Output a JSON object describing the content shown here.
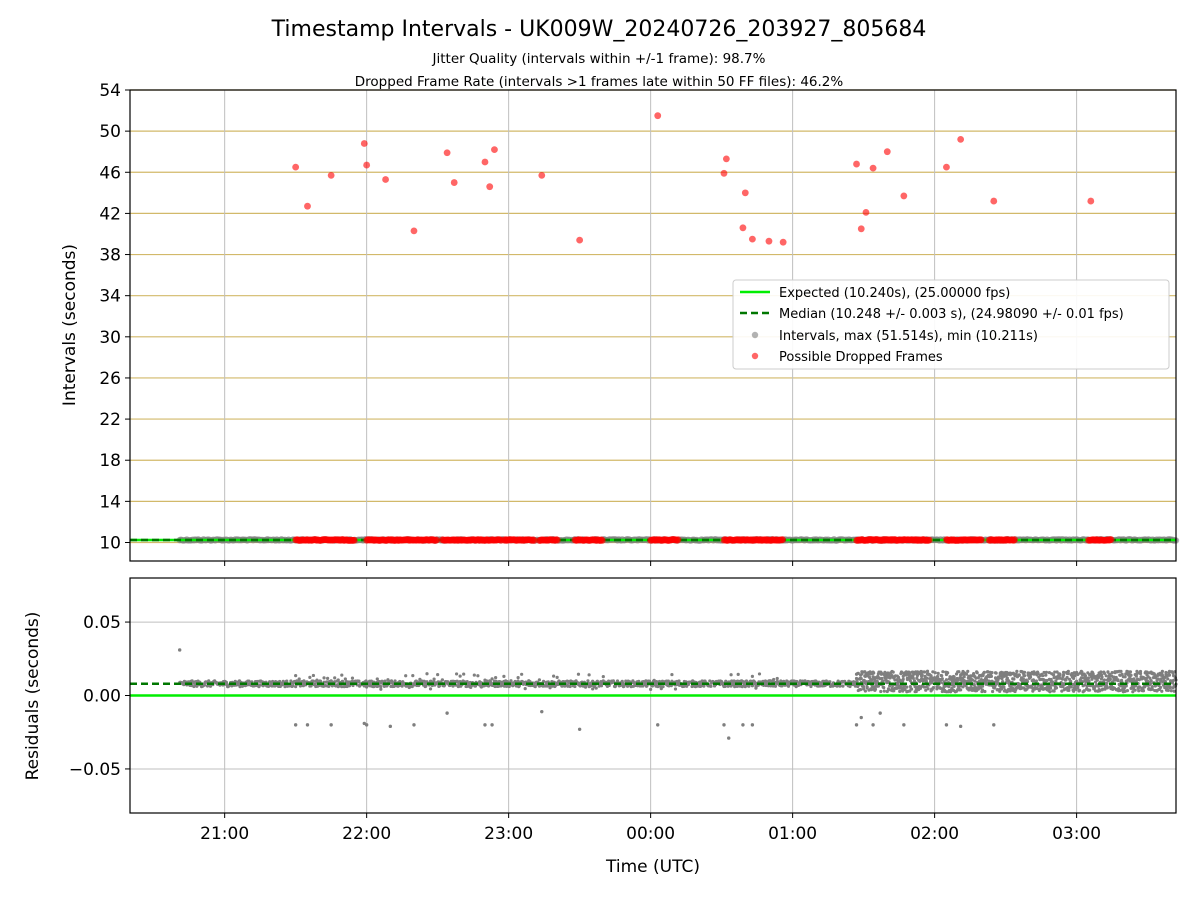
{
  "chart_data": [
    {
      "type": "scatter",
      "title": "Timestamp Intervals - UK009W_20240726_203927_805684",
      "subtitle_lines": [
        "Jitter Quality (intervals within +/-1 frame): 98.7%",
        "Dropped Frame Rate (intervals >1 frames late within 50 FF files): 46.2%"
      ],
      "ylabel": "Intervals (seconds)",
      "xlim": [
        "20:20",
        "03:42"
      ],
      "ylim": [
        8.2,
        54
      ],
      "yticks": [
        10,
        14,
        18,
        22,
        26,
        30,
        34,
        38,
        42,
        46,
        50,
        54
      ],
      "ytick_labels": [
        "10",
        "14",
        "18",
        "22",
        "26",
        "30",
        "34",
        "38",
        "42",
        "46",
        "50",
        "54"
      ],
      "grid": "horizontal lines goldenrod, vertical lines grey",
      "legend_position": "center-right",
      "colors": {
        "expected": "#00ee00",
        "median": "#007700",
        "intervals": "#7f7f7f",
        "dropped": "#ff0000",
        "hgrid": "#d2b96a",
        "vgrid": "#bfbfbf"
      },
      "series": [
        {
          "name": "Expected (10.240s), (25.00000 fps)",
          "kind": "hline",
          "value": 10.24
        },
        {
          "name": "Median (10.248 +/- 0.003 s), (24.98090 +/- 0.01 fps)",
          "kind": "hline-dashed",
          "value": 10.248
        },
        {
          "name": "Intervals, max (51.514s), min (10.211s)",
          "kind": "scatter",
          "band": {
            "x_from": "20:41",
            "x_to": "03:42",
            "value": 10.25
          }
        },
        {
          "name": "Possible Dropped Frames",
          "kind": "scatter",
          "x": [
            "21:30",
            "21:35",
            "21:45",
            "21:59",
            "22:00",
            "22:08",
            "22:20",
            "22:34",
            "22:37",
            "22:50",
            "22:52",
            "22:54",
            "23:14",
            "23:30",
            "00:03",
            "00:31",
            "00:32",
            "00:39",
            "00:40",
            "00:43",
            "00:50",
            "00:56",
            "01:27",
            "01:29",
            "01:31",
            "01:34",
            "01:40",
            "01:47",
            "02:05",
            "02:11",
            "02:25",
            "03:06"
          ],
          "y": [
            46.5,
            42.7,
            45.7,
            48.8,
            46.7,
            45.3,
            40.3,
            47.9,
            45.0,
            47.0,
            44.6,
            48.2,
            45.7,
            39.4,
            51.5,
            45.9,
            47.3,
            40.6,
            44.0,
            39.5,
            39.3,
            39.2,
            46.8,
            40.5,
            42.1,
            46.4,
            48.0,
            43.7,
            46.5,
            49.2,
            43.2,
            43.2
          ],
          "cluster_ranges": [
            [
              "21:30",
              "21:55"
            ],
            [
              "22:00",
              "22:30"
            ],
            [
              "22:32",
              "22:57"
            ],
            [
              "22:58",
              "23:11"
            ],
            [
              "23:13",
              "23:21"
            ],
            [
              "23:28",
              "23:40"
            ],
            [
              "00:00",
              "00:12"
            ],
            [
              "00:31",
              "00:56"
            ],
            [
              "01:27",
              "01:58"
            ],
            [
              "02:05",
              "02:20"
            ],
            [
              "02:23",
              "02:34"
            ],
            [
              "03:05",
              "03:15"
            ]
          ],
          "cluster_value": 10.24
        }
      ]
    },
    {
      "type": "scatter",
      "xlabel": "Time (UTC)",
      "ylabel": "Residuals (seconds)",
      "xlim": [
        "20:20",
        "03:42"
      ],
      "ylim": [
        -0.08,
        0.08
      ],
      "xticks": [
        "21:00",
        "22:00",
        "23:00",
        "00:00",
        "01:00",
        "02:00",
        "03:00"
      ],
      "yticks": [
        0.05,
        0.0,
        -0.05
      ],
      "ytick_labels": [
        "0.05",
        "0.00",
        "−0.05"
      ],
      "grid": "both axes grey",
      "series": [
        {
          "name": "Expected",
          "kind": "hline",
          "value": 0.0
        },
        {
          "name": "Median",
          "kind": "hline-dashed",
          "value": 0.008
        },
        {
          "name": "Residuals",
          "kind": "scatter",
          "outliers_x": [
            "20:41",
            "21:30",
            "21:35",
            "21:45",
            "21:59",
            "22:00",
            "22:10",
            "22:20",
            "22:34",
            "22:50",
            "22:53",
            "23:14",
            "23:30",
            "00:03",
            "00:31",
            "00:33",
            "00:39",
            "00:43",
            "01:27",
            "01:29",
            "01:34",
            "01:37",
            "01:47",
            "02:05",
            "02:11",
            "02:25"
          ],
          "outliers_y": [
            0.031,
            -0.02,
            -0.02,
            -0.02,
            -0.019,
            -0.02,
            -0.021,
            -0.02,
            -0.012,
            -0.02,
            -0.02,
            -0.011,
            -0.023,
            -0.02,
            -0.02,
            -0.029,
            -0.02,
            -0.02,
            -0.02,
            -0.015,
            -0.02,
            -0.012,
            -0.02,
            -0.02,
            -0.021,
            -0.02
          ]
        }
      ]
    }
  ]
}
